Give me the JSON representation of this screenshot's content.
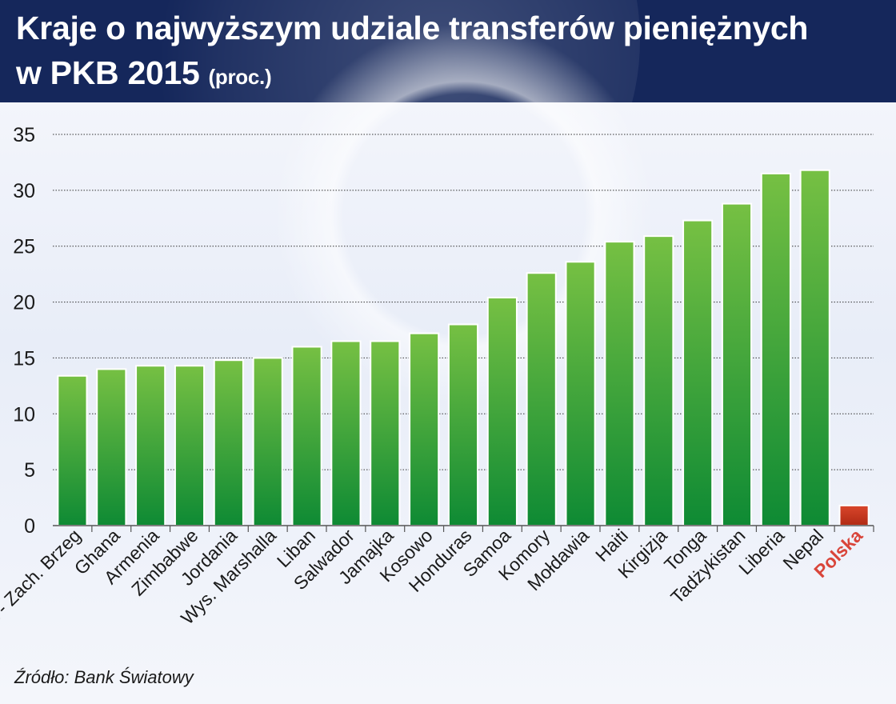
{
  "title": {
    "line1": "Kraje o najwyższym udziale transferów pieniężnych",
    "line2_main": "w PKB 2015",
    "line2_unit": "(proc.)"
  },
  "source": "Źródło: Bank Światowy",
  "colors": {
    "header_bg": "#15275b",
    "bar_green_top": "#76c043",
    "bar_green_bottom": "#0e8a34",
    "bar_highlight_top": "#d9462b",
    "bar_highlight_bottom": "#b02a14",
    "highlight_label": "#d9453a"
  },
  "chart_data": {
    "type": "bar",
    "title": "Kraje o najwyższym udziale transferów pieniężnych w PKB 2015 (proc.)",
    "xlabel": "",
    "ylabel": "",
    "ylim": [
      0,
      35
    ],
    "yticks": [
      0,
      5,
      10,
      15,
      20,
      25,
      30,
      35
    ],
    "grid": true,
    "categories": [
      "Gaza - Zach. Brzeg",
      "Ghana",
      "Armenia",
      "Zimbabwe",
      "Jordania",
      "Wys. Marshalla",
      "Liban",
      "Salwador",
      "Jamajka",
      "Kosowo",
      "Honduras",
      "Samoa",
      "Komory",
      "Mołdawia",
      "Haiti",
      "Kirgizja",
      "Tonga",
      "Tadżykistan",
      "Liberia",
      "Nepal",
      "Polska"
    ],
    "values": [
      13.4,
      14.0,
      14.3,
      14.3,
      14.8,
      15.0,
      16.0,
      16.5,
      16.5,
      17.2,
      18.0,
      20.4,
      22.6,
      23.6,
      25.4,
      25.9,
      27.3,
      28.8,
      31.5,
      31.8,
      1.8
    ],
    "highlight": [
      "Polska"
    ]
  }
}
